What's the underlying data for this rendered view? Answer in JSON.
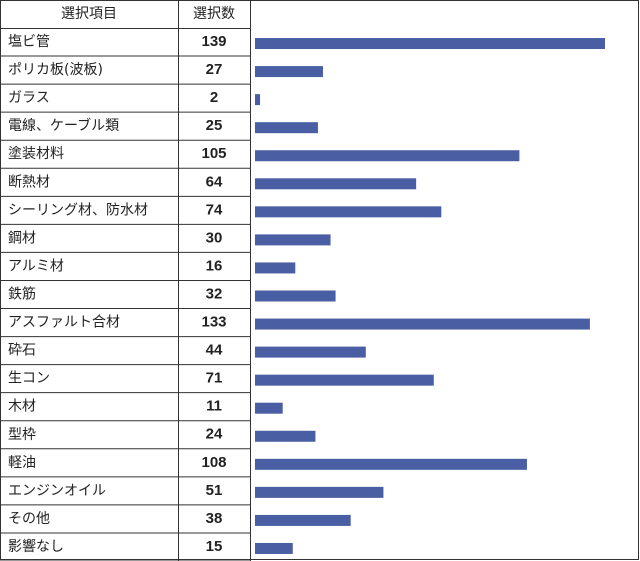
{
  "chart_data": {
    "type": "bar",
    "headers": [
      "選択項目",
      "選択数"
    ],
    "categories": [
      "塩ビ管",
      "ポリカ板(波板)",
      "ガラス",
      "電線、ケーブル類",
      "塗装材料",
      "断熱材",
      "シーリング材、防水材",
      "鋼材",
      "アルミ材",
      "鉄筋",
      "アスファルト合材",
      "砕石",
      "生コン",
      "木材",
      "型枠",
      "軽油",
      "エンジンオイル",
      "その他",
      "影響なし"
    ],
    "values": [
      139,
      27,
      2,
      25,
      105,
      64,
      74,
      30,
      16,
      32,
      133,
      44,
      71,
      11,
      24,
      108,
      51,
      38,
      15
    ],
    "color": "#4a5ea3"
  }
}
